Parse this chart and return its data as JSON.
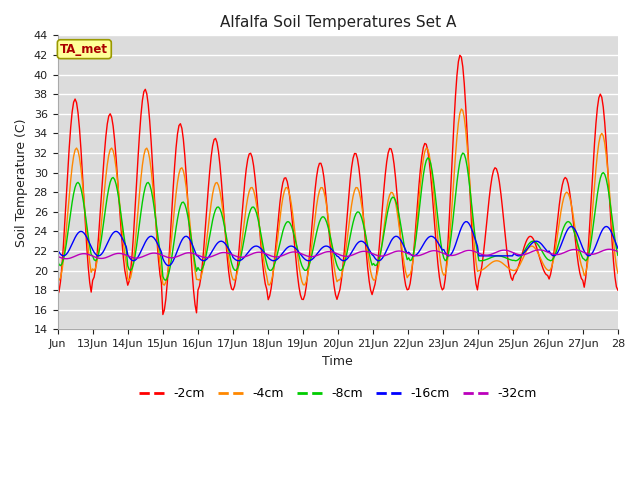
{
  "title": "Alfalfa Soil Temperatures Set A",
  "xlabel": "Time",
  "ylabel": "Soil Temperature (C)",
  "ylim": [
    14,
    44
  ],
  "yticks": [
    14,
    16,
    18,
    20,
    22,
    24,
    26,
    28,
    30,
    32,
    34,
    36,
    38,
    40,
    42,
    44
  ],
  "plot_bg_color": "#dcdcdc",
  "fig_bg_color": "#ffffff",
  "grid_color": "#ffffff",
  "series_colors": {
    "-2cm": "#ff0000",
    "-4cm": "#ff8800",
    "-8cm": "#00cc00",
    "-16cm": "#0000ff",
    "-32cm": "#bb00bb"
  },
  "annotation_label": "TA_met",
  "annotation_color": "#aa0000",
  "annotation_bg": "#ffff99",
  "annotation_edge": "#999900",
  "xtick_labels": [
    "Jun",
    "13Jun",
    "14Jun",
    "15Jun",
    "16Jun",
    "17Jun",
    "18Jun",
    "19Jun",
    "20Jun",
    "21Jun",
    "22Jun",
    "23Jun",
    "24Jun",
    "25Jun",
    "26Jun",
    "27Jun",
    "28"
  ],
  "n_days": 16,
  "hours_per_day": 24,
  "base_2cm": [
    17.5,
    19.0,
    18.5,
    15.5,
    18.0,
    18.0,
    17.0,
    17.0,
    17.5,
    18.0,
    18.0,
    18.0,
    19.0,
    19.5,
    19.0,
    18.0
  ],
  "peak_2cm": [
    37.5,
    36.0,
    38.5,
    35.0,
    33.5,
    32.0,
    29.5,
    31.0,
    32.0,
    32.5,
    33.0,
    42.0,
    30.5,
    23.5,
    29.5,
    38.0
  ],
  "base_4cm": [
    19.0,
    20.0,
    19.0,
    18.5,
    19.0,
    19.0,
    18.5,
    18.5,
    19.0,
    19.0,
    19.5,
    19.5,
    20.0,
    20.0,
    20.0,
    19.5
  ],
  "peak_4cm": [
    32.5,
    32.5,
    32.5,
    30.5,
    29.0,
    28.5,
    28.5,
    28.5,
    28.5,
    28.0,
    32.5,
    36.5,
    21.0,
    22.5,
    28.0,
    34.0
  ],
  "base_8cm": [
    20.5,
    21.0,
    20.0,
    19.0,
    20.0,
    20.0,
    20.0,
    20.0,
    20.0,
    20.5,
    21.0,
    21.0,
    21.0,
    21.0,
    21.0,
    21.0
  ],
  "peak_8cm": [
    29.0,
    29.5,
    29.0,
    27.0,
    26.5,
    26.5,
    25.0,
    25.5,
    26.0,
    27.5,
    31.5,
    32.0,
    21.5,
    23.0,
    25.0,
    30.0
  ],
  "base_16cm": [
    21.5,
    21.5,
    21.0,
    20.5,
    21.0,
    21.0,
    21.0,
    21.0,
    21.0,
    21.0,
    21.5,
    21.5,
    21.5,
    21.5,
    21.5,
    21.5
  ],
  "peak_16cm": [
    24.0,
    24.0,
    23.5,
    23.5,
    23.0,
    22.5,
    22.5,
    22.5,
    23.0,
    23.5,
    23.5,
    25.0,
    21.5,
    23.0,
    24.5,
    24.5
  ],
  "base_32cm": 21.2,
  "peak_32cm": 21.7,
  "lag_4cm": 0.04,
  "lag_8cm": 0.08,
  "lag_16cm": 0.17,
  "lag_32cm": 0.25
}
